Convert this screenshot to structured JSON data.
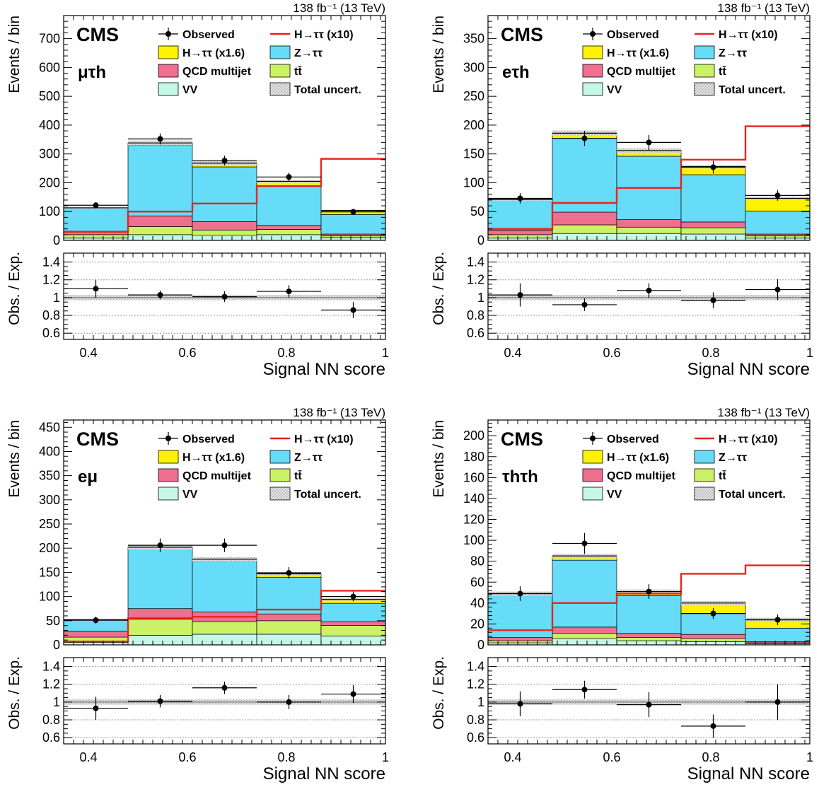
{
  "common": {
    "lumi_label": "138 fb⁻¹ (13 TeV)",
    "cms_label": "CMS",
    "ylabel_main": "Events / bin",
    "ylabel_ratio": "Obs. / Exp.",
    "xlabel": "Signal NN score",
    "x_tick_labels": [
      "0.4",
      "0.6",
      "0.8",
      "1"
    ],
    "ratio_tick_labels": [
      "0.6",
      "0.8",
      "1",
      "1.2",
      "1.4"
    ],
    "legend": [
      {
        "key": "observed",
        "label": "Observed"
      },
      {
        "key": "signal_line",
        "label": "H→ττ (x10)"
      },
      {
        "key": "htt",
        "label": "H→ττ (x1.6)"
      },
      {
        "key": "ztt",
        "label": "Z→ττ"
      },
      {
        "key": "qcd",
        "label": "QCD multijet"
      },
      {
        "key": "ttbar",
        "label": "tt̄"
      },
      {
        "key": "vv",
        "label": "VV"
      },
      {
        "key": "unc",
        "label": "Total uncert."
      }
    ],
    "colors": {
      "vv": "#c4f7e6",
      "ttbar": "#cbf266",
      "qcd": "#ef6f8f",
      "ztt": "#66dcf8",
      "htt": "#fdf200",
      "signal_line": "#e8241c",
      "observed": "#000000",
      "unc": "#c8c8c8"
    }
  },
  "chart_data": [
    {
      "type": "bar",
      "channel": "μτh",
      "x_edges": [
        0.35,
        0.48,
        0.61,
        0.74,
        0.87,
        1.0
      ],
      "xlim": [
        0.35,
        1.0
      ],
      "ylim": [
        0,
        780
      ],
      "y_ticks": [
        0,
        100,
        200,
        300,
        400,
        500,
        600,
        700
      ],
      "ratio_ylim": [
        0.53,
        1.5
      ],
      "stack": [
        {
          "key": "vv",
          "values": [
            8,
            20,
            18,
            20,
            10
          ]
        },
        {
          "key": "ttbar",
          "values": [
            12,
            28,
            18,
            18,
            6
          ]
        },
        {
          "key": "qcd",
          "values": [
            12,
            37,
            29,
            14,
            6
          ]
        },
        {
          "key": "ztt",
          "values": [
            80,
            245,
            190,
            138,
            68
          ]
        },
        {
          "key": "htt",
          "values": [
            1,
            8,
            13,
            15,
            14
          ]
        }
      ],
      "signal_x10": [
        30,
        100,
        128,
        188,
        283
      ],
      "observed": [
        122,
        352,
        277,
        220,
        99
      ],
      "observed_err": [
        11,
        19,
        17,
        15,
        10
      ],
      "ratio": [
        1.1,
        1.03,
        1.01,
        1.07,
        0.86
      ],
      "ratio_err": [
        0.1,
        0.05,
        0.06,
        0.07,
        0.09
      ]
    },
    {
      "type": "bar",
      "channel": "eτh",
      "x_edges": [
        0.35,
        0.48,
        0.61,
        0.74,
        0.87,
        1.0
      ],
      "xlim": [
        0.35,
        1.0
      ],
      "ylim": [
        0,
        390
      ],
      "y_ticks": [
        0,
        50,
        100,
        150,
        200,
        250,
        300,
        350
      ],
      "ratio_ylim": [
        0.53,
        1.5
      ],
      "stack": [
        {
          "key": "vv",
          "values": [
            4,
            12,
            12,
            11,
            4
          ]
        },
        {
          "key": "ttbar",
          "values": [
            6,
            15,
            11,
            11,
            4
          ]
        },
        {
          "key": "qcd",
          "values": [
            8,
            22,
            13,
            10,
            3
          ]
        },
        {
          "key": "ztt",
          "values": [
            52,
            128,
            110,
            82,
            40
          ]
        },
        {
          "key": "htt",
          "values": [
            1,
            9,
            10,
            14,
            22
          ]
        }
      ],
      "signal_x10": [
        20,
        65,
        91,
        140,
        198
      ],
      "observed": [
        73,
        177,
        170,
        127,
        78
      ],
      "observed_err": [
        9,
        13,
        13,
        11,
        9
      ],
      "ratio": [
        1.03,
        0.92,
        1.08,
        0.97,
        1.09
      ],
      "ratio_err": [
        0.13,
        0.07,
        0.08,
        0.09,
        0.12
      ]
    },
    {
      "type": "bar",
      "channel": "eμ",
      "x_edges": [
        0.35,
        0.48,
        0.61,
        0.74,
        0.87,
        1.0
      ],
      "xlim": [
        0.35,
        1.0
      ],
      "ylim": [
        0,
        465
      ],
      "y_ticks": [
        0,
        50,
        100,
        150,
        200,
        250,
        300,
        350,
        400,
        450
      ],
      "ratio_ylim": [
        0.53,
        1.5
      ],
      "stack": [
        {
          "key": "vv",
          "values": [
            5,
            20,
            22,
            22,
            18
          ]
        },
        {
          "key": "ttbar",
          "values": [
            11,
            33,
            26,
            28,
            22
          ]
        },
        {
          "key": "qcd",
          "values": [
            12,
            22,
            20,
            14,
            8
          ]
        },
        {
          "key": "ztt",
          "values": [
            23,
            123,
            105,
            76,
            38
          ]
        },
        {
          "key": "htt",
          "values": [
            1,
            4,
            4,
            7,
            8
          ]
        }
      ],
      "signal_x10": [
        7,
        55,
        58,
        73,
        112
      ],
      "observed": [
        51,
        206,
        206,
        149,
        100
      ],
      "observed_err": [
        7,
        14,
        14,
        12,
        10
      ],
      "ratio": [
        0.93,
        1.01,
        1.16,
        1.0,
        1.09
      ],
      "ratio_err": [
        0.13,
        0.07,
        0.07,
        0.08,
        0.1
      ]
    },
    {
      "type": "bar",
      "channel": "τhτh",
      "x_edges": [
        0.35,
        0.48,
        0.61,
        0.74,
        0.87,
        1.0
      ],
      "xlim": [
        0.35,
        1.0
      ],
      "ylim": [
        0,
        215
      ],
      "y_ticks": [
        0,
        20,
        40,
        60,
        80,
        100,
        120,
        140,
        160,
        180,
        200
      ],
      "ratio_ylim": [
        0.53,
        1.5
      ],
      "stack": [
        {
          "key": "vv",
          "values": [
            2,
            6,
            4,
            3,
            1
          ]
        },
        {
          "key": "ttbar",
          "values": [
            2,
            5,
            3,
            3,
            1
          ]
        },
        {
          "key": "qcd",
          "values": [
            3,
            6,
            4,
            4,
            1
          ]
        },
        {
          "key": "ztt",
          "values": [
            42,
            64,
            36,
            20,
            13
          ]
        },
        {
          "key": "htt",
          "values": [
            0,
            4,
            4,
            10,
            8
          ]
        }
      ],
      "signal_x10": [
        14,
        40,
        49,
        68,
        76
      ],
      "observed": [
        49,
        97,
        51,
        30,
        24
      ],
      "observed_err": [
        7,
        10,
        7,
        5,
        5
      ],
      "ratio": [
        0.98,
        1.14,
        0.97,
        0.73,
        1.0
      ],
      "ratio_err": [
        0.14,
        0.1,
        0.14,
        0.13,
        0.2
      ]
    }
  ]
}
